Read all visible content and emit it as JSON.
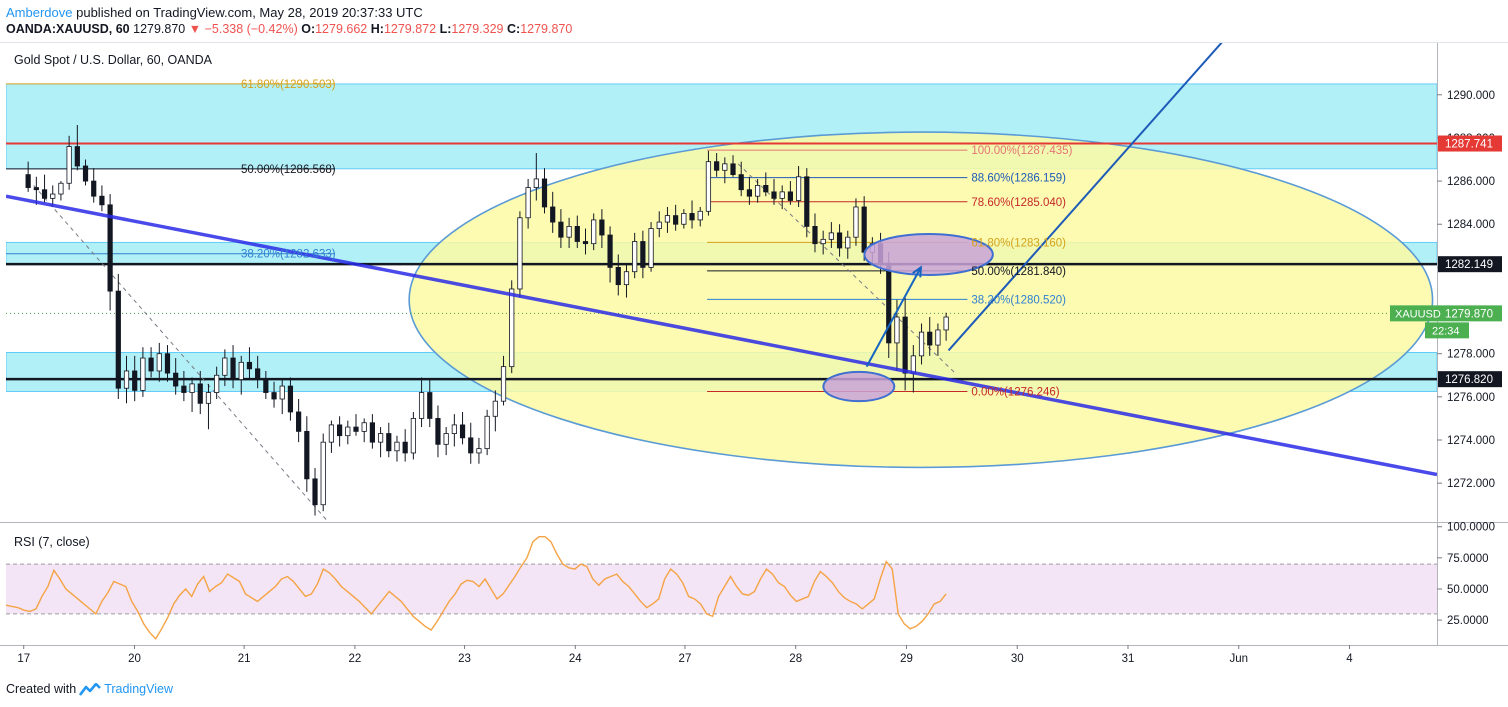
{
  "header": {
    "author": "Amberdove",
    "published": "published on TradingView.com, May 28, 2019 20:37:33 UTC",
    "symbol": "OANDA:XAUUSD, 60",
    "last": "1279.870",
    "change": "−5.338 (−0.42%)",
    "o_label": "O:",
    "o": "1279.662",
    "h_label": "H:",
    "h": "1279.872",
    "l_label": "L:",
    "l": "1279.329",
    "c_label": "C:",
    "c": "1279.870"
  },
  "footer": {
    "created_with": "Created with",
    "brand": "TradingView"
  },
  "colors": {
    "up": "#131722",
    "down": "#131722",
    "candle_up_fill": "#ffffff",
    "candle_down_fill": "#131722",
    "zone": "#b2f0f7",
    "ellipse": "#fbfaa3",
    "ellipse_stroke": "#5b9bd5",
    "trend": "#2a2ae6",
    "arrow": "#1565c0",
    "resistance": "#e53935",
    "rsi_line": "#f5a345",
    "rsi_band": "#f3e5f5"
  },
  "chart_data": [
    {
      "type": "candlestick",
      "title": "Gold Spot / U.S. Dollar, 60, OANDA",
      "ylim": [
        1270.2,
        1292.4
      ],
      "y_ticks": [
        1272,
        1274,
        1276,
        1278,
        1280,
        1282,
        1284,
        1286,
        1288,
        1290
      ],
      "x_labels": [
        {
          "label": "17",
          "t": 1.6
        },
        {
          "label": "20",
          "t": 11.6
        },
        {
          "label": "21",
          "t": 21.5
        },
        {
          "label": "22",
          "t": 31.5
        },
        {
          "label": "23",
          "t": 41.4
        },
        {
          "label": "24",
          "t": 51.4
        },
        {
          "label": "27",
          "t": 61.3
        },
        {
          "label": "28",
          "t": 71.3
        },
        {
          "label": "29",
          "t": 81.3
        },
        {
          "label": "30",
          "t": 91.3
        },
        {
          "label": "31",
          "t": 101.3
        },
        {
          "label": "Jun",
          "t": 111.3
        },
        {
          "label": "4",
          "t": 121.3
        }
      ],
      "t_range": [
        0,
        129.2
      ],
      "zones": [
        {
          "from": 1286.568,
          "to": 1290.503
        },
        {
          "from": 1282.149,
          "to": 1283.16
        },
        {
          "from": 1276.246,
          "to": 1278.06
        }
      ],
      "price_labels": [
        {
          "value": 1287.741,
          "text": "1287.741",
          "style": "red"
        },
        {
          "value": 1282.149,
          "text": "1282.149",
          "style": "black"
        },
        {
          "value": 1279.87,
          "text": "1279.870",
          "style": "green",
          "name": "XAUUSD",
          "countdown": "22:34"
        },
        {
          "value": 1276.82,
          "text": "1276.820",
          "style": "black"
        }
      ],
      "horizontal_lines": [
        {
          "value": 1287.741,
          "style": "red"
        },
        {
          "value": 1282.149,
          "style": "thick"
        },
        {
          "value": 1276.82,
          "style": "thick"
        },
        {
          "value": 1279.87,
          "style": "dotted-green"
        }
      ],
      "fib_left": [
        {
          "text": "61.80%(1290.503)",
          "value": 1290.503,
          "color": "#d4a21b",
          "t0": 0,
          "t1": 29.7
        },
        {
          "text": "50.00%(1286.568)",
          "value": 1286.568,
          "color": "#131722",
          "t0": 0,
          "t1": 29.7
        },
        {
          "text": "38.20%(1282.633)",
          "value": 1282.633,
          "color": "#2f80d1",
          "t0": 0,
          "t1": 29.7
        }
      ],
      "fib_right": [
        {
          "text": "100.00%(1287.435)",
          "value": 1287.435,
          "color": "#e57373"
        },
        {
          "text": "88.60%(1286.159)",
          "value": 1286.159,
          "color": "#1e5bb8"
        },
        {
          "text": "78.60%(1285.040)",
          "value": 1285.04,
          "color": "#c62828"
        },
        {
          "text": "61.80%(1283.160)",
          "value": 1283.16,
          "color": "#d4a21b"
        },
        {
          "text": "50.00%(1281.840)",
          "value": 1281.84,
          "color": "#131722"
        },
        {
          "text": "38.20%(1280.520)",
          "value": 1280.52,
          "color": "#2f80d1"
        },
        {
          "text": "0.00%(1276.246)",
          "value": 1276.246,
          "color": "#c62828"
        }
      ],
      "fib_right_span": [
        63.3,
        86.8
      ],
      "trend_line": {
        "from": [
          0,
          1285.3
        ],
        "to": [
          129.2,
          1272.4
        ]
      },
      "channel_line": {
        "from": [
          85.1,
          1278.15
        ],
        "to": [
          111.8,
          1293.6
        ]
      },
      "dashed_lines": [
        {
          "from": [
            2.5,
            1285.8
          ],
          "to": [
            29.1,
            1270.2
          ]
        },
        {
          "from": [
            66.1,
            1286.8
          ],
          "to": [
            85.7,
            1277.1
          ]
        }
      ],
      "arrow": {
        "from": [
          77.7,
          1277.4
        ],
        "to": [
          82.6,
          1282.0
        ]
      },
      "ellipse": {
        "cx": 82.6,
        "cy": 1280.5,
        "rx": 46.2,
        "ry": 7.77
      },
      "markers": [
        {
          "cx": 77.0,
          "cy": 1276.48,
          "rx": 3.2,
          "ry": 0.68
        },
        {
          "cx": 83.3,
          "cy": 1282.6,
          "rx": 5.8,
          "ry": 0.95
        }
      ],
      "ohlc": [
        [
          1286.3,
          1286.9,
          1285.5,
          1285.7
        ],
        [
          1285.7,
          1286.2,
          1284.9,
          1285.6
        ],
        [
          1285.6,
          1286.3,
          1285.0,
          1285.2
        ],
        [
          1285.2,
          1285.8,
          1284.8,
          1285.4
        ],
        [
          1285.4,
          1286.0,
          1285.1,
          1285.9
        ],
        [
          1285.9,
          1288.1,
          1285.6,
          1287.6
        ],
        [
          1287.6,
          1288.6,
          1286.5,
          1286.7
        ],
        [
          1286.7,
          1287.0,
          1285.8,
          1286.0
        ],
        [
          1286.0,
          1286.6,
          1285.0,
          1285.3
        ],
        [
          1285.3,
          1285.8,
          1284.6,
          1284.9
        ],
        [
          1284.9,
          1285.4,
          1280.0,
          1280.9
        ],
        [
          1280.9,
          1281.7,
          1275.9,
          1276.4
        ],
        [
          1276.4,
          1277.9,
          1275.7,
          1277.2
        ],
        [
          1277.2,
          1277.9,
          1275.8,
          1276.3
        ],
        [
          1276.3,
          1278.3,
          1276.0,
          1277.8
        ],
        [
          1277.8,
          1278.3,
          1276.9,
          1277.2
        ],
        [
          1277.2,
          1278.5,
          1276.7,
          1278.0
        ],
        [
          1278.0,
          1278.4,
          1276.7,
          1277.1
        ],
        [
          1277.1,
          1277.8,
          1276.1,
          1276.5
        ],
        [
          1276.5,
          1277.2,
          1275.8,
          1276.2
        ],
        [
          1276.2,
          1276.9,
          1275.3,
          1276.6
        ],
        [
          1276.6,
          1277.2,
          1275.2,
          1275.7
        ],
        [
          1275.7,
          1276.6,
          1274.5,
          1276.2
        ],
        [
          1276.2,
          1277.4,
          1275.9,
          1277.0
        ],
        [
          1277.0,
          1278.2,
          1276.5,
          1277.8
        ],
        [
          1277.8,
          1278.4,
          1276.4,
          1276.8
        ],
        [
          1276.8,
          1277.9,
          1276.1,
          1277.6
        ],
        [
          1277.6,
          1278.3,
          1276.8,
          1277.3
        ],
        [
          1277.3,
          1277.9,
          1276.4,
          1276.8
        ],
        [
          1276.8,
          1277.2,
          1275.9,
          1276.2
        ],
        [
          1276.2,
          1276.7,
          1275.5,
          1275.9
        ],
        [
          1275.9,
          1276.8,
          1275.2,
          1276.5
        ],
        [
          1276.5,
          1276.9,
          1274.9,
          1275.3
        ],
        [
          1275.3,
          1275.9,
          1273.9,
          1274.4
        ],
        [
          1274.4,
          1275.1,
          1271.6,
          1272.2
        ],
        [
          1272.2,
          1272.7,
          1270.5,
          1271.0
        ],
        [
          1271.0,
          1274.3,
          1270.7,
          1273.9
        ],
        [
          1273.9,
          1274.9,
          1273.4,
          1274.7
        ],
        [
          1274.7,
          1275.1,
          1273.7,
          1274.2
        ],
        [
          1274.2,
          1274.9,
          1273.8,
          1274.6
        ],
        [
          1274.6,
          1275.2,
          1274.2,
          1274.4
        ],
        [
          1274.4,
          1275.0,
          1273.9,
          1274.8
        ],
        [
          1274.8,
          1275.2,
          1273.6,
          1273.9
        ],
        [
          1273.9,
          1274.6,
          1273.2,
          1274.3
        ],
        [
          1274.3,
          1274.8,
          1273.2,
          1273.5
        ],
        [
          1273.5,
          1274.2,
          1273.0,
          1273.9
        ],
        [
          1273.9,
          1274.5,
          1273.0,
          1273.4
        ],
        [
          1273.4,
          1275.3,
          1273.1,
          1275.0
        ],
        [
          1275.0,
          1276.9,
          1274.6,
          1276.2
        ],
        [
          1276.2,
          1276.8,
          1274.6,
          1275.0
        ],
        [
          1275.0,
          1275.6,
          1273.2,
          1273.8
        ],
        [
          1273.8,
          1274.6,
          1273.3,
          1274.3
        ],
        [
          1274.3,
          1275.2,
          1273.7,
          1274.7
        ],
        [
          1274.7,
          1275.3,
          1273.8,
          1274.1
        ],
        [
          1274.1,
          1274.8,
          1272.9,
          1273.4
        ],
        [
          1273.4,
          1274.1,
          1272.9,
          1273.6
        ],
        [
          1273.6,
          1275.4,
          1273.3,
          1275.1
        ],
        [
          1275.1,
          1276.3,
          1274.4,
          1275.8
        ],
        [
          1275.8,
          1277.9,
          1275.6,
          1277.4
        ],
        [
          1277.4,
          1281.4,
          1277.1,
          1281.0
        ],
        [
          1281.0,
          1284.6,
          1280.6,
          1284.3
        ],
        [
          1284.3,
          1286.1,
          1283.8,
          1285.7
        ],
        [
          1285.7,
          1287.3,
          1285.1,
          1286.1
        ],
        [
          1286.1,
          1286.6,
          1284.5,
          1284.8
        ],
        [
          1284.8,
          1285.5,
          1283.6,
          1284.1
        ],
        [
          1284.1,
          1284.7,
          1282.9,
          1283.4
        ],
        [
          1283.4,
          1284.3,
          1282.9,
          1283.9
        ],
        [
          1283.9,
          1284.4,
          1282.9,
          1283.2
        ],
        [
          1283.2,
          1283.8,
          1282.6,
          1283.1
        ],
        [
          1283.1,
          1284.5,
          1282.8,
          1284.2
        ],
        [
          1284.2,
          1284.7,
          1282.9,
          1283.5
        ],
        [
          1283.5,
          1283.9,
          1281.3,
          1282.0
        ],
        [
          1282.0,
          1282.6,
          1280.7,
          1281.2
        ],
        [
          1281.2,
          1282.1,
          1280.6,
          1281.8
        ],
        [
          1281.8,
          1283.6,
          1281.5,
          1283.2
        ],
        [
          1283.2,
          1283.7,
          1281.5,
          1282.0
        ],
        [
          1282.0,
          1284.1,
          1281.8,
          1283.8
        ],
        [
          1283.8,
          1284.6,
          1283.4,
          1284.1
        ],
        [
          1284.1,
          1284.8,
          1283.6,
          1284.4
        ],
        [
          1284.4,
          1284.9,
          1283.7,
          1284.0
        ],
        [
          1284.0,
          1284.7,
          1283.8,
          1284.5
        ],
        [
          1284.5,
          1285.1,
          1283.8,
          1284.2
        ],
        [
          1284.2,
          1284.8,
          1283.9,
          1284.6
        ],
        [
          1284.6,
          1287.4,
          1284.4,
          1286.9
        ],
        [
          1286.9,
          1287.3,
          1286.2,
          1286.5
        ],
        [
          1286.5,
          1287.1,
          1285.9,
          1286.8
        ],
        [
          1286.8,
          1287.2,
          1286.2,
          1286.3
        ],
        [
          1286.3,
          1286.9,
          1285.3,
          1285.6
        ],
        [
          1285.6,
          1286.2,
          1284.9,
          1285.3
        ],
        [
          1285.3,
          1286.1,
          1285.0,
          1285.8
        ],
        [
          1285.8,
          1286.4,
          1285.3,
          1285.5
        ],
        [
          1285.5,
          1286.1,
          1284.9,
          1285.2
        ],
        [
          1285.2,
          1285.8,
          1284.7,
          1285.5
        ],
        [
          1285.5,
          1286.0,
          1284.9,
          1285.1
        ],
        [
          1285.1,
          1286.7,
          1284.8,
          1286.2
        ],
        [
          1286.2,
          1286.6,
          1283.4,
          1283.9
        ],
        [
          1283.9,
          1284.5,
          1282.7,
          1283.1
        ],
        [
          1283.1,
          1283.7,
          1282.6,
          1283.3
        ],
        [
          1283.3,
          1284.1,
          1282.9,
          1283.6
        ],
        [
          1283.6,
          1284.0,
          1282.5,
          1282.9
        ],
        [
          1282.9,
          1283.7,
          1282.4,
          1283.4
        ],
        [
          1283.4,
          1285.2,
          1283.0,
          1284.8
        ],
        [
          1284.8,
          1285.3,
          1282.3,
          1282.7
        ],
        [
          1282.7,
          1283.4,
          1282.1,
          1283.1
        ],
        [
          1283.1,
          1283.6,
          1281.7,
          1282.2
        ],
        [
          1282.2,
          1282.7,
          1277.8,
          1278.5
        ],
        [
          1278.5,
          1280.5,
          1277.2,
          1279.7
        ],
        [
          1279.7,
          1280.6,
          1276.3,
          1277.1
        ],
        [
          1277.1,
          1278.4,
          1276.2,
          1277.9
        ],
        [
          1277.9,
          1279.4,
          1277.5,
          1279.0
        ],
        [
          1279.0,
          1279.7,
          1277.9,
          1278.4
        ],
        [
          1278.4,
          1279.4,
          1277.9,
          1279.1
        ],
        [
          1279.1,
          1279.9,
          1278.6,
          1279.7
        ]
      ]
    },
    {
      "type": "line",
      "title": "RSI (7, close)",
      "ylim": [
        5,
        103
      ],
      "y_ticks": [
        {
          "value": 25,
          "text": "25.0000"
        },
        {
          "value": 50,
          "text": "50.0000"
        },
        {
          "value": 75,
          "text": "75.0000"
        },
        {
          "value": 100,
          "text": "100.0000"
        }
      ],
      "band": [
        30,
        70
      ],
      "values": [
        37,
        36,
        35,
        33,
        32,
        34,
        44,
        52,
        65,
        58,
        50,
        46,
        42,
        38,
        34,
        30,
        40,
        47,
        56,
        54,
        52,
        40,
        32,
        22,
        15,
        10,
        18,
        27,
        38,
        45,
        50,
        44,
        54,
        60,
        48,
        52,
        55,
        62,
        59,
        56,
        46,
        43,
        40,
        44,
        48,
        52,
        58,
        60,
        56,
        50,
        44,
        46,
        54,
        66,
        63,
        58,
        52,
        48,
        44,
        40,
        35,
        30,
        36,
        42,
        48,
        44,
        40,
        34,
        28,
        24,
        20,
        17,
        24,
        32,
        40,
        46,
        54,
        57,
        56,
        52,
        58,
        50,
        42,
        46,
        53,
        60,
        68,
        75,
        88,
        92,
        92,
        88,
        78,
        70,
        67,
        66,
        70,
        68,
        58,
        53,
        58,
        60,
        62,
        56,
        52,
        46,
        40,
        35,
        38,
        42,
        58,
        66,
        62,
        55,
        44,
        42,
        38,
        30,
        28,
        44,
        52,
        60,
        52,
        46,
        45,
        48,
        58,
        66,
        62,
        55,
        52,
        45,
        40,
        42,
        44,
        56,
        64,
        60,
        55,
        48,
        43,
        40,
        38,
        34,
        38,
        42,
        58,
        72,
        66,
        30,
        22,
        18,
        20,
        24,
        30,
        38,
        40,
        46
      ]
    }
  ]
}
